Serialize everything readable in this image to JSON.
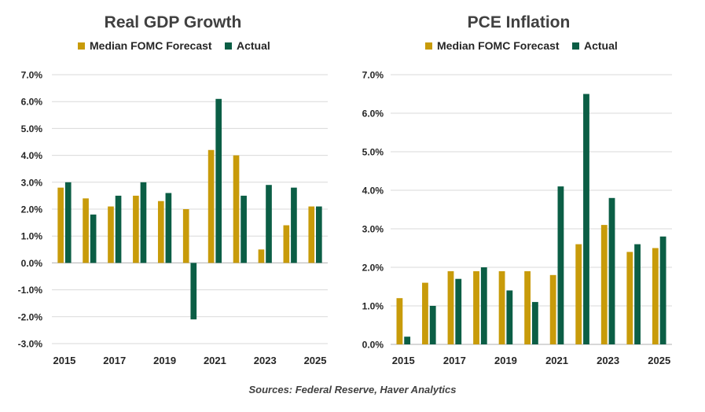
{
  "colors": {
    "forecast": "#C89B0A",
    "actual": "#0B5E45",
    "grid": "#D9D9D9",
    "axis": "#BFBFBF",
    "text": "#262626",
    "title": "#404040"
  },
  "source": "Sources: Federal Reserve, Haver Analytics",
  "chart_data": [
    {
      "type": "bar",
      "title": "Real GDP Growth",
      "legend": [
        "Median FOMC Forecast",
        "Actual"
      ],
      "categories": [
        "2015",
        "2016",
        "2017",
        "2018",
        "2019",
        "2020",
        "2021",
        "2022",
        "2023",
        "2024",
        "2025"
      ],
      "x_tick_labels": [
        "2015",
        "",
        "2017",
        "",
        "2019",
        "",
        "2021",
        "",
        "2023",
        "",
        "2025"
      ],
      "y_tick_labels": [
        "7.0%",
        "6.0%",
        "5.0%",
        "4.0%",
        "3.0%",
        "2.0%",
        "1.0%",
        "0.0%",
        "-1.0%",
        "-2.0%",
        "-3.0%"
      ],
      "ylim": [
        -3,
        7
      ],
      "series": [
        {
          "name": "Median FOMC Forecast",
          "values": [
            2.8,
            2.4,
            2.1,
            2.5,
            2.3,
            2.0,
            4.2,
            4.0,
            0.5,
            1.4,
            2.1
          ]
        },
        {
          "name": "Actual",
          "values": [
            3.0,
            1.8,
            2.5,
            3.0,
            2.6,
            -2.1,
            6.1,
            2.5,
            2.9,
            2.8,
            2.1
          ]
        }
      ]
    },
    {
      "type": "bar",
      "title": "PCE Inflation",
      "legend": [
        "Median FOMC Forecast",
        "Actual"
      ],
      "categories": [
        "2015",
        "2016",
        "2017",
        "2018",
        "2019",
        "2020",
        "2021",
        "2022",
        "2023",
        "2024",
        "2025"
      ],
      "x_tick_labels": [
        "2015",
        "",
        "2017",
        "",
        "2019",
        "",
        "2021",
        "",
        "2023",
        "",
        "2025"
      ],
      "y_tick_labels": [
        "7.0%",
        "6.0%",
        "5.0%",
        "4.0%",
        "3.0%",
        "2.0%",
        "1.0%",
        "0.0%"
      ],
      "ylim": [
        0,
        7
      ],
      "series": [
        {
          "name": "Median FOMC Forecast",
          "values": [
            1.2,
            1.6,
            1.9,
            1.9,
            1.9,
            1.9,
            1.8,
            2.6,
            3.1,
            2.4,
            2.5
          ]
        },
        {
          "name": "Actual",
          "values": [
            0.2,
            1.0,
            1.7,
            2.0,
            1.4,
            1.1,
            4.1,
            6.5,
            3.8,
            2.6,
            2.8
          ]
        }
      ]
    }
  ]
}
